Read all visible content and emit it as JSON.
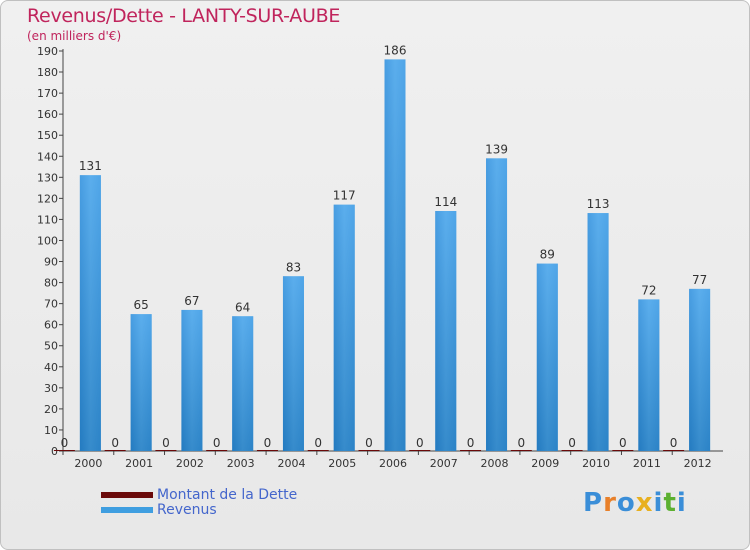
{
  "title": "Revenus/Dette - LANTY-SUR-AUBE",
  "subtitle": "(en milliers d'€)",
  "colors": {
    "debt": "#6b0a0a",
    "revenue": "#3f9ee0",
    "revenue_dark": "#2a84cc",
    "title": "#c0245c",
    "legend_text": "#4466cc"
  },
  "chart_data": {
    "type": "bar",
    "title": "Revenus/Dette - LANTY-SUR-AUBE",
    "ylabel": "(en milliers d'€)",
    "xlabel": "",
    "categories": [
      "2000",
      "2001",
      "2002",
      "2003",
      "2004",
      "2005",
      "2006",
      "2007",
      "2008",
      "2009",
      "2010",
      "2011",
      "2012"
    ],
    "series": [
      {
        "name": "Montant de la Dette",
        "values": [
          0,
          0,
          0,
          0,
          0,
          0,
          0,
          0,
          0,
          0,
          0,
          0,
          0
        ]
      },
      {
        "name": "Revenus",
        "values": [
          131,
          65,
          67,
          64,
          83,
          117,
          186,
          114,
          139,
          89,
          113,
          72,
          77
        ]
      }
    ],
    "ylim": [
      0,
      190
    ],
    "yticks": [
      0,
      10,
      20,
      30,
      40,
      50,
      60,
      70,
      80,
      90,
      100,
      110,
      120,
      130,
      140,
      150,
      160,
      170,
      180,
      190
    ],
    "grid": false,
    "legend": "bottom-left"
  },
  "legend": {
    "debt_label": "Montant de la Dette",
    "revenue_label": "Revenus"
  },
  "logo": {
    "letters": [
      "P",
      "r",
      "o",
      "x",
      "i",
      "t",
      "i"
    ],
    "colors": [
      "#3a8ed8",
      "#e8802a",
      "#3a8ed8",
      "#e8b020",
      "#3a8ed8",
      "#5cb030",
      "#3a8ed8"
    ]
  }
}
